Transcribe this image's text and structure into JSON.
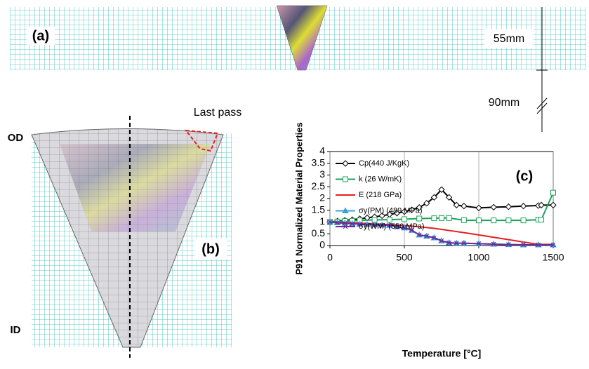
{
  "panel_a": {
    "label": "(a)",
    "thickness": "55mm",
    "gap": "90mm"
  },
  "panel_b": {
    "label": "(b)",
    "outer": "OD",
    "inner": "ID",
    "note": "Last pass"
  },
  "chart_data": {
    "type": "line",
    "annotation": "(c)",
    "x_label": "Temperature [°C]",
    "y_label": "P91 Normalized Material Properties",
    "xlim": [
      0,
      1500
    ],
    "xticks": [
      0,
      500,
      1000,
      1500
    ],
    "ylim": [
      0,
      4
    ],
    "yticks": [
      0,
      0.5,
      1,
      1.5,
      2,
      2.5,
      3,
      3.5,
      4
    ],
    "grid": "x",
    "legend": "upper-left",
    "series": [
      {
        "name": "Cp(440 J/KgK)",
        "color": "#000000",
        "marker": "diamond",
        "x": [
          0,
          50,
          100,
          150,
          200,
          250,
          300,
          350,
          400,
          450,
          500,
          550,
          600,
          650,
          700,
          750,
          800,
          850,
          900,
          1000,
          1100,
          1200,
          1300,
          1400,
          1420,
          1500
        ],
        "values": [
          1.0,
          1.04,
          1.07,
          1.1,
          1.14,
          1.18,
          1.22,
          1.27,
          1.32,
          1.38,
          1.44,
          1.52,
          1.62,
          1.8,
          2.05,
          2.38,
          2.05,
          1.72,
          1.68,
          1.6,
          1.63,
          1.65,
          1.68,
          1.7,
          1.72,
          1.72
        ]
      },
      {
        "name": "k (26 W/mK)",
        "color": "#1aa35a",
        "marker": "square",
        "x": [
          0,
          50,
          100,
          150,
          200,
          300,
          400,
          500,
          600,
          700,
          750,
          800,
          900,
          1000,
          1100,
          1200,
          1300,
          1400,
          1420,
          1500
        ],
        "values": [
          1.0,
          1.02,
          1.04,
          1.05,
          1.07,
          1.09,
          1.1,
          1.12,
          1.15,
          1.16,
          1.17,
          1.17,
          1.08,
          1.07,
          1.07,
          1.07,
          1.07,
          1.1,
          1.1,
          2.25
        ]
      },
      {
        "name": "E (218 GPa)",
        "color": "#e02020",
        "marker": "none",
        "x": [
          0,
          100,
          200,
          300,
          400,
          500,
          600,
          700,
          800,
          900,
          1000,
          1100,
          1200,
          1300,
          1400,
          1500
        ],
        "values": [
          1.0,
          0.98,
          0.95,
          0.92,
          0.89,
          0.85,
          0.8,
          0.73,
          0.64,
          0.55,
          0.45,
          0.35,
          0.25,
          0.15,
          0.05,
          0.05
        ]
      },
      {
        "name": "σy(PM) (489 MPa)",
        "color": "#3aa0d8",
        "marker": "triangle",
        "x": [
          0,
          50,
          100,
          150,
          200,
          250,
          300,
          350,
          400,
          450,
          500,
          550,
          600,
          650,
          700,
          750,
          800,
          850,
          900,
          1000,
          1100,
          1200,
          1300,
          1400,
          1500
        ],
        "values": [
          1.0,
          0.97,
          0.95,
          0.93,
          0.91,
          0.89,
          0.88,
          0.87,
          0.86,
          0.8,
          0.75,
          0.65,
          0.45,
          0.4,
          0.33,
          0.2,
          0.12,
          0.1,
          0.1,
          0.08,
          0.06,
          0.04,
          0.03,
          0.03,
          0.03
        ]
      },
      {
        "name": "σy(WM) (550 MPa)",
        "color": "#6a2a9a",
        "marker": "x",
        "x": [
          0,
          50,
          100,
          150,
          200,
          250,
          300,
          350,
          400,
          450,
          500,
          550,
          600,
          650,
          700,
          750,
          800,
          850,
          900,
          1000,
          1100,
          1200,
          1300,
          1400,
          1500
        ],
        "values": [
          1.0,
          0.97,
          0.95,
          0.93,
          0.91,
          0.89,
          0.88,
          0.87,
          0.86,
          0.8,
          0.75,
          0.65,
          0.45,
          0.4,
          0.33,
          0.2,
          0.12,
          0.1,
          0.1,
          0.08,
          0.06,
          0.04,
          0.03,
          0.03,
          0.03
        ]
      }
    ]
  }
}
